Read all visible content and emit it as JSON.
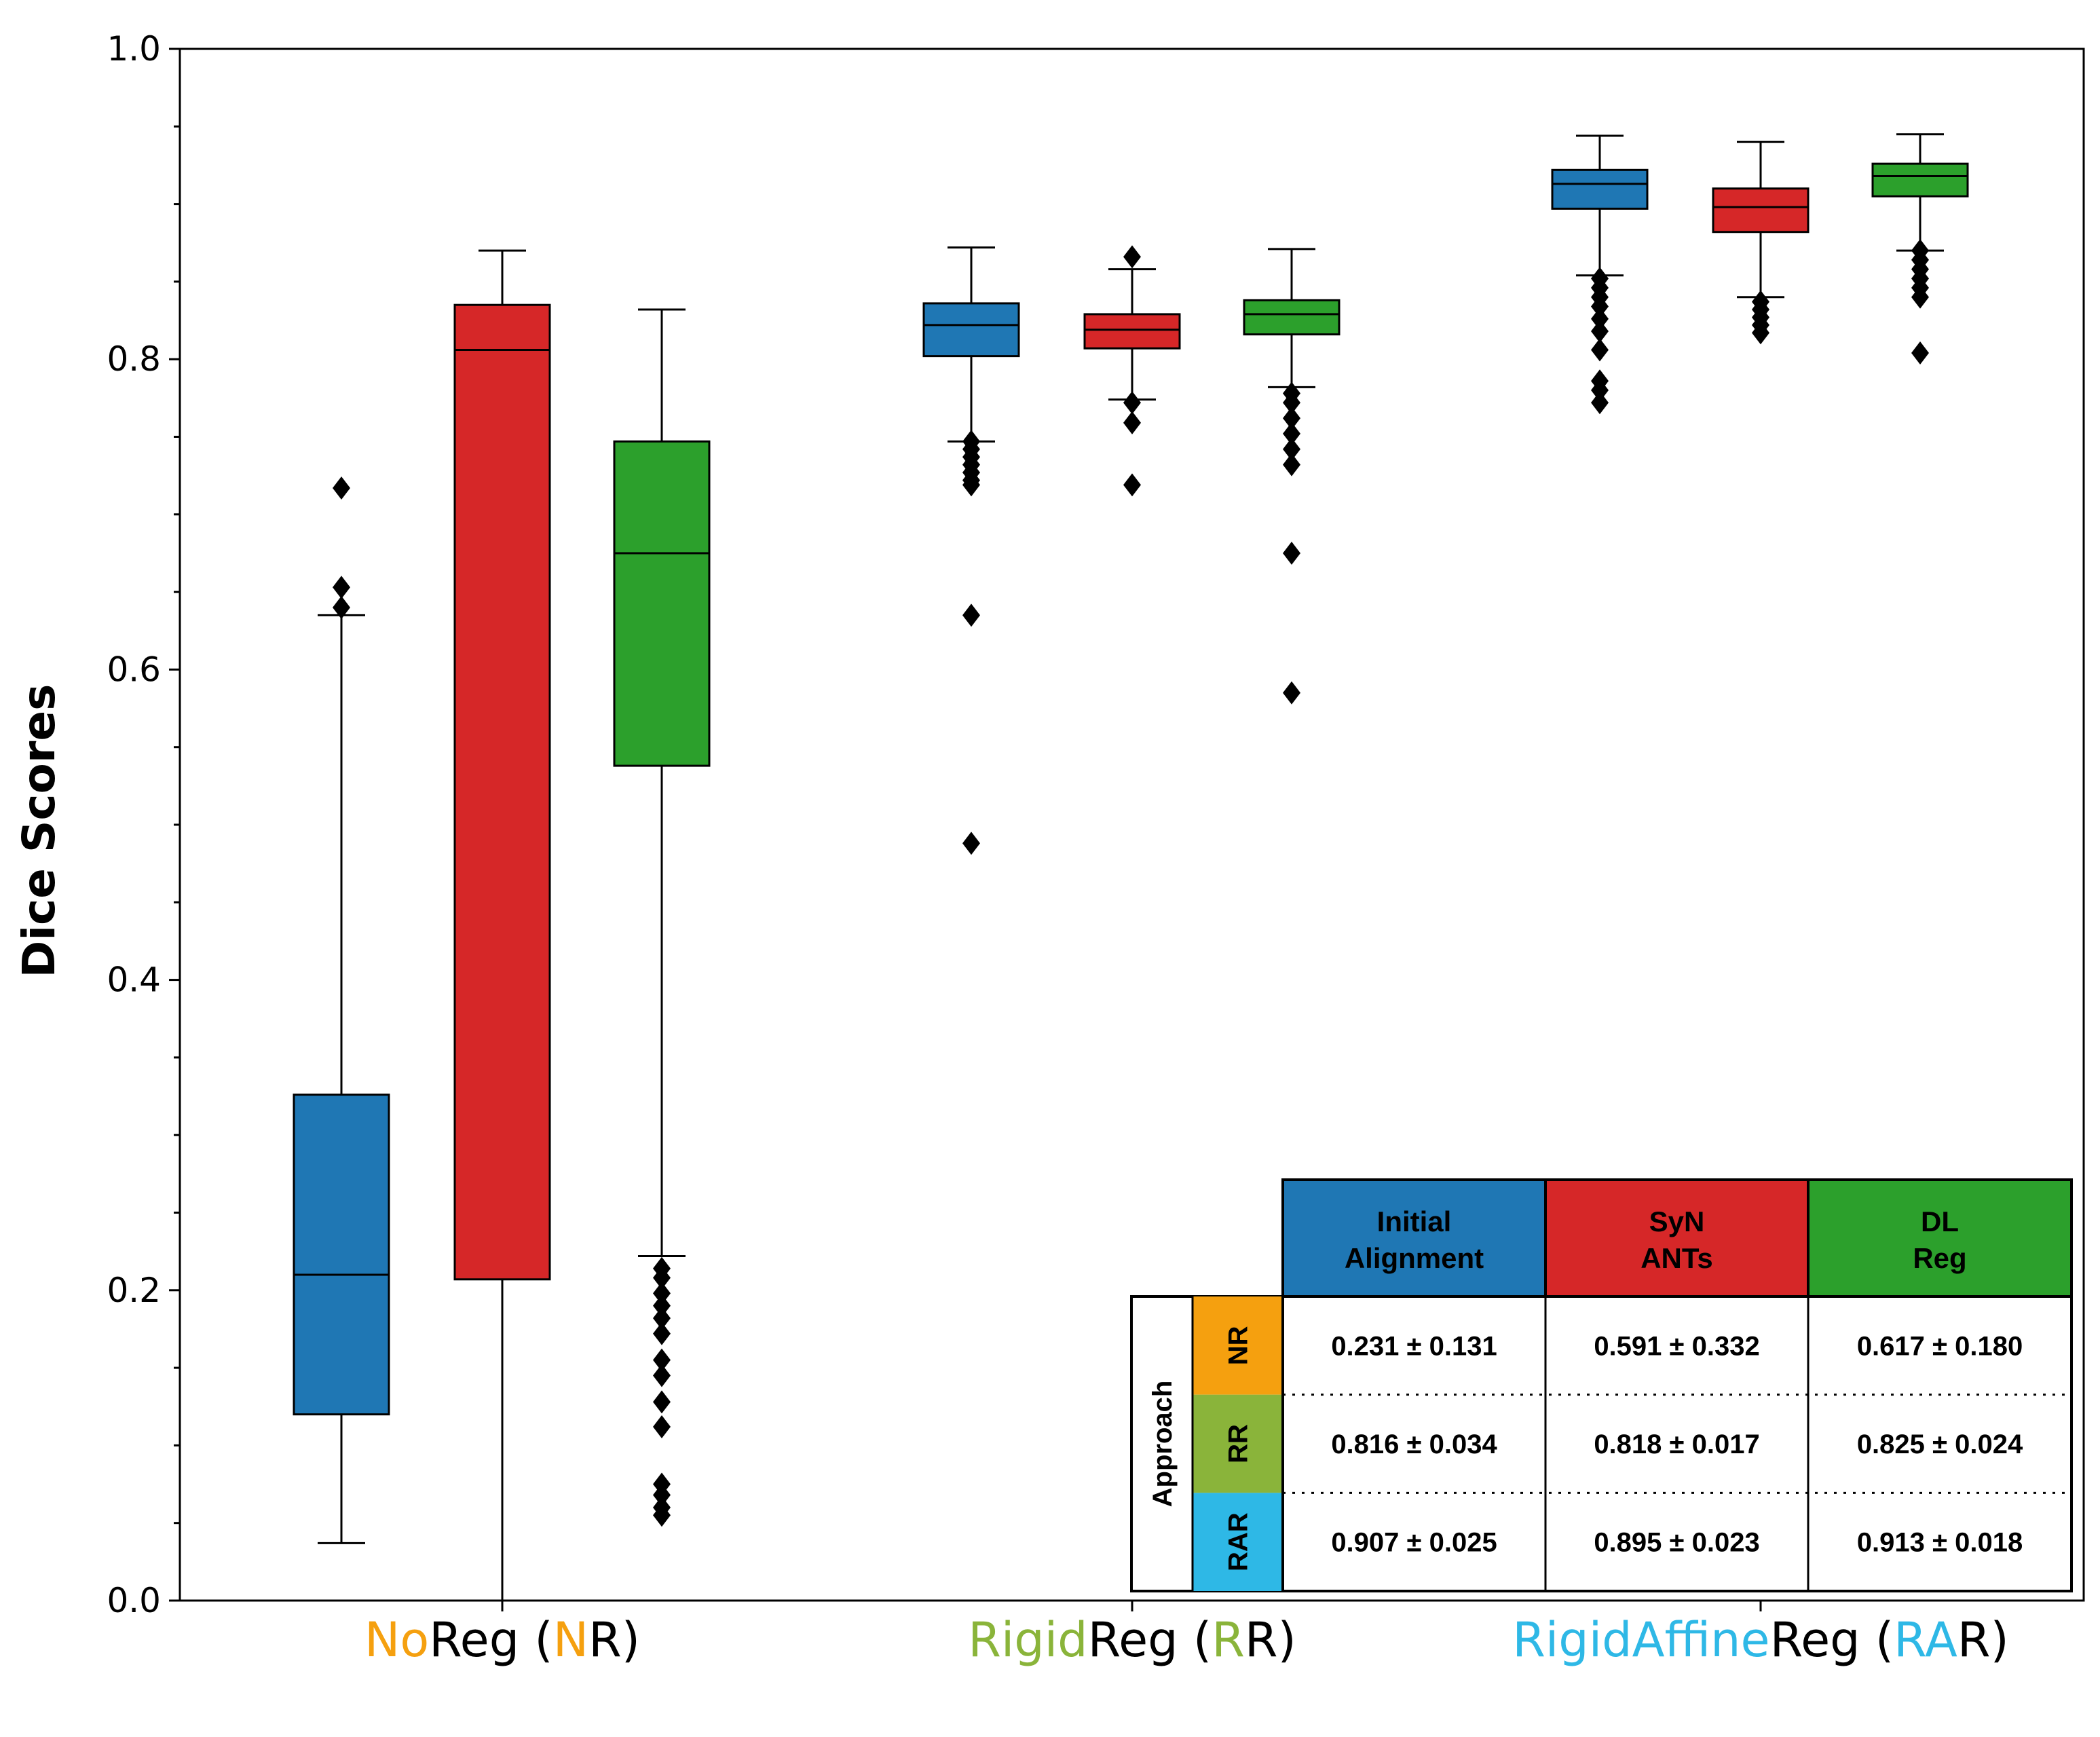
{
  "chart_data": {
    "type": "box",
    "title": "",
    "ylabel": "Dice Scores",
    "xlabel": "",
    "ylim": [
      0.0,
      1.0
    ],
    "yticks": [
      "0.0",
      "0.2",
      "0.4",
      "0.6",
      "0.8",
      "1.0"
    ],
    "grid": false,
    "groups": [
      {
        "key": "NR",
        "label_parts": [
          {
            "text": "No",
            "color": "#f5a00f"
          },
          {
            "text": "Reg (",
            "color": "#000000"
          },
          {
            "text": "N",
            "color": "#f5a00f"
          },
          {
            "text": "R)",
            "color": "#000000"
          }
        ]
      },
      {
        "key": "RR",
        "label_parts": [
          {
            "text": "Rigid",
            "color": "#8ab43a"
          },
          {
            "text": "Reg (",
            "color": "#000000"
          },
          {
            "text": "R",
            "color": "#8ab43a"
          },
          {
            "text": "R)",
            "color": "#000000"
          }
        ]
      },
      {
        "key": "RAR",
        "label_parts": [
          {
            "text": "RigidAffine",
            "color": "#2eb8e6"
          },
          {
            "text": "Reg (",
            "color": "#000000"
          },
          {
            "text": "RA",
            "color": "#2eb8e6"
          },
          {
            "text": "R)",
            "color": "#000000"
          }
        ]
      }
    ],
    "series": [
      {
        "name": "Initial Alignment",
        "color": "#1f77b4"
      },
      {
        "name": "SyN ANTs",
        "color": "#d62728"
      },
      {
        "name": "DL Reg",
        "color": "#2ca02c"
      }
    ],
    "boxes": [
      {
        "group": "NR",
        "series": "Initial Alignment",
        "whislo": 0.037,
        "q1": 0.12,
        "med": 0.21,
        "q3": 0.326,
        "whishi": 0.635,
        "fliers": [
          0.64,
          0.653,
          0.717
        ]
      },
      {
        "group": "NR",
        "series": "SyN ANTs",
        "whislo": 0.0,
        "q1": 0.207,
        "med": 0.806,
        "q3": 0.835,
        "whishi": 0.87,
        "fliers": []
      },
      {
        "group": "NR",
        "series": "DL Reg",
        "whislo": 0.222,
        "q1": 0.538,
        "med": 0.675,
        "q3": 0.747,
        "whishi": 0.832,
        "fliers": [
          0.055,
          0.06,
          0.068,
          0.075,
          0.112,
          0.128,
          0.145,
          0.155,
          0.172,
          0.182,
          0.19,
          0.198,
          0.208,
          0.214
        ]
      },
      {
        "group": "RR",
        "series": "Initial Alignment",
        "whislo": 0.747,
        "q1": 0.802,
        "med": 0.822,
        "q3": 0.836,
        "whishi": 0.872,
        "fliers": [
          0.488,
          0.635,
          0.719,
          0.722,
          0.727,
          0.732,
          0.737,
          0.742,
          0.747
        ]
      },
      {
        "group": "RR",
        "series": "SyN ANTs",
        "whislo": 0.774,
        "q1": 0.807,
        "med": 0.819,
        "q3": 0.829,
        "whishi": 0.858,
        "fliers": [
          0.719,
          0.759,
          0.772,
          0.866
        ]
      },
      {
        "group": "RR",
        "series": "DL Reg",
        "whislo": 0.782,
        "q1": 0.816,
        "med": 0.829,
        "q3": 0.838,
        "whishi": 0.871,
        "fliers": [
          0.585,
          0.675,
          0.732,
          0.742,
          0.752,
          0.762,
          0.772,
          0.778
        ]
      },
      {
        "group": "RAR",
        "series": "Initial Alignment",
        "whislo": 0.854,
        "q1": 0.897,
        "med": 0.913,
        "q3": 0.922,
        "whishi": 0.944,
        "fliers": [
          0.772,
          0.78,
          0.786,
          0.806,
          0.818,
          0.826,
          0.834,
          0.84,
          0.846,
          0.852
        ]
      },
      {
        "group": "RAR",
        "series": "SyN ANTs",
        "whislo": 0.84,
        "q1": 0.882,
        "med": 0.898,
        "q3": 0.91,
        "whishi": 0.94,
        "fliers": [
          0.817,
          0.822,
          0.827,
          0.832,
          0.837
        ]
      },
      {
        "group": "RAR",
        "series": "DL Reg",
        "whislo": 0.87,
        "q1": 0.905,
        "med": 0.918,
        "q3": 0.926,
        "whishi": 0.945,
        "fliers": [
          0.804,
          0.84,
          0.846,
          0.852,
          0.858,
          0.864,
          0.87
        ]
      }
    ],
    "inset_table": {
      "columns": [
        "Initial\nAlignment",
        "SyN\nANTs",
        "DL\nReg"
      ],
      "column_colors": [
        "#1f77b4",
        "#d62728",
        "#2ca02c"
      ],
      "row_header_title": "Approach",
      "rows": [
        {
          "label": "NR",
          "color": "#f5a00f",
          "values": [
            "0.231 ± 0.131",
            "0.591 ± 0.332",
            "0.617 ± 0.180"
          ]
        },
        {
          "label": "RR",
          "color": "#8ab43a",
          "values": [
            "0.816 ± 0.034",
            "0.818 ± 0.017",
            "0.825 ± 0.024"
          ]
        },
        {
          "label": "RAR",
          "color": "#2eb8e6",
          "values": [
            "0.907 ± 0.025",
            "0.895 ± 0.023",
            "0.913 ± 0.018"
          ]
        }
      ]
    }
  }
}
